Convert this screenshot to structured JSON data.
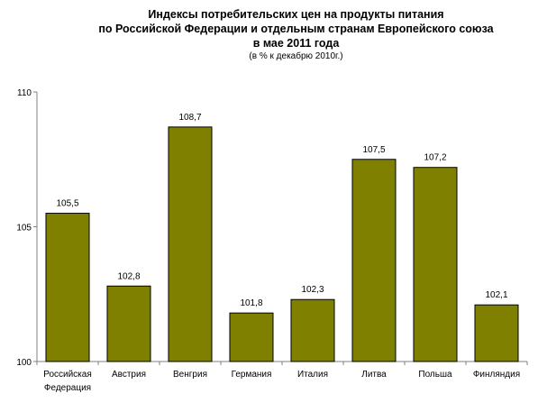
{
  "title_lines": [
    "Индексы потребительских цен на продукты питания",
    "по Российской Федерации и отдельным странам Европейского союза",
    "в мае 2011 года"
  ],
  "subtitle": "(в % к декабрю 2010г.)",
  "colors": {
    "bar": "#808000",
    "bar_stroke": "#000000",
    "axis": "#808080",
    "text": "#000000"
  },
  "chart_data": {
    "type": "bar",
    "title": "Индексы потребительских цен на продукты питания по Российской Федерации и отдельным странам Европейского союза в мае 2011 года",
    "subtitle": "(в % к декабрю 2010г.)",
    "categories": [
      [
        "Российская",
        "Федерация"
      ],
      [
        "Австрия"
      ],
      [
        "Венгрия"
      ],
      [
        "Германия"
      ],
      [
        "Италия"
      ],
      [
        "Литва"
      ],
      [
        "Польша"
      ],
      [
        "Финляндия"
      ]
    ],
    "values": [
      105.5,
      102.8,
      108.7,
      101.8,
      102.3,
      107.5,
      107.2,
      102.1
    ],
    "data_labels": [
      "105,5",
      "102,8",
      "108,7",
      "101,8",
      "102,3",
      "107,5",
      "107,2",
      "102,1"
    ],
    "ylim": [
      100,
      110
    ],
    "yticks": [
      100,
      105,
      110
    ],
    "ytick_labels": [
      "100",
      "105",
      "110"
    ],
    "xlabel": "",
    "ylabel": "",
    "grid": false,
    "legend": "none"
  }
}
